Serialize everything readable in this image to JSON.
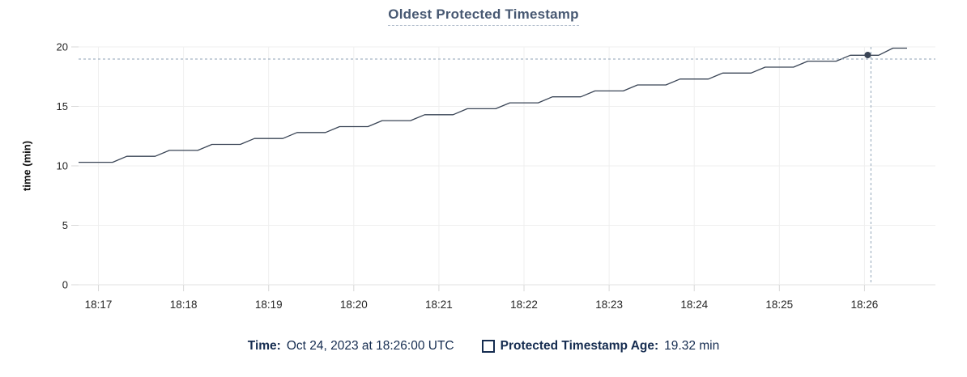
{
  "tooltip": {
    "time_label": "Time:",
    "time_value": "Oct 24, 2023 at 18:26:00 UTC",
    "series_label": "Protected Timestamp Age:",
    "series_value": "19.32 min"
  },
  "colors": {
    "series_line": "#394455",
    "hover_point": "#394455",
    "crosshair": "#a3b4c4",
    "title_text": "#475872",
    "legend_text": "#152c50",
    "axis_text": "#262626",
    "gridline": "#efefef",
    "axis_line": "#e0e0e0",
    "tick_mark": "#d8d8d8"
  },
  "chart_data": {
    "type": "line",
    "title": "Oldest Protected Timestamp",
    "xlabel": "",
    "ylabel": "time (min)",
    "ylim": [
      0,
      20
    ],
    "y_ticks": [
      0,
      5,
      10,
      15,
      20
    ],
    "x_ticks": [
      "18:17",
      "18:18",
      "18:19",
      "18:20",
      "18:21",
      "18:22",
      "18:23",
      "18:24",
      "18:25",
      "18:26"
    ],
    "x_range": [
      "18:16:46",
      "18:26:50"
    ],
    "grid": true,
    "legend_position": "bottom",
    "series": [
      {
        "name": "Protected Timestamp Age",
        "unit": "min",
        "points": [
          [
            "18:16:46",
            10.3
          ],
          [
            "18:17:10",
            10.3
          ],
          [
            "18:17:20",
            10.8
          ],
          [
            "18:17:40",
            10.8
          ],
          [
            "18:17:50",
            11.3
          ],
          [
            "18:18:10",
            11.3
          ],
          [
            "18:18:20",
            11.8
          ],
          [
            "18:18:40",
            11.8
          ],
          [
            "18:18:50",
            12.3
          ],
          [
            "18:19:10",
            12.3
          ],
          [
            "18:19:20",
            12.8
          ],
          [
            "18:19:40",
            12.8
          ],
          [
            "18:19:50",
            13.3
          ],
          [
            "18:20:10",
            13.3
          ],
          [
            "18:20:20",
            13.8
          ],
          [
            "18:20:40",
            13.8
          ],
          [
            "18:20:50",
            14.3
          ],
          [
            "18:21:10",
            14.3
          ],
          [
            "18:21:20",
            14.8
          ],
          [
            "18:21:40",
            14.8
          ],
          [
            "18:21:50",
            15.3
          ],
          [
            "18:22:10",
            15.3
          ],
          [
            "18:22:20",
            15.8
          ],
          [
            "18:22:40",
            15.8
          ],
          [
            "18:22:50",
            16.3
          ],
          [
            "18:23:10",
            16.3
          ],
          [
            "18:23:20",
            16.8
          ],
          [
            "18:23:40",
            16.8
          ],
          [
            "18:23:50",
            17.3
          ],
          [
            "18:24:10",
            17.3
          ],
          [
            "18:24:20",
            17.8
          ],
          [
            "18:24:40",
            17.8
          ],
          [
            "18:24:50",
            18.3
          ],
          [
            "18:25:10",
            18.3
          ],
          [
            "18:25:20",
            18.8
          ],
          [
            "18:25:40",
            18.8
          ],
          [
            "18:25:50",
            19.3
          ],
          [
            "18:26:10",
            19.3
          ],
          [
            "18:26:20",
            19.9
          ],
          [
            "18:26:30",
            19.9
          ]
        ]
      }
    ],
    "hover": {
      "time": "18:26:00",
      "value": 19.32
    }
  }
}
